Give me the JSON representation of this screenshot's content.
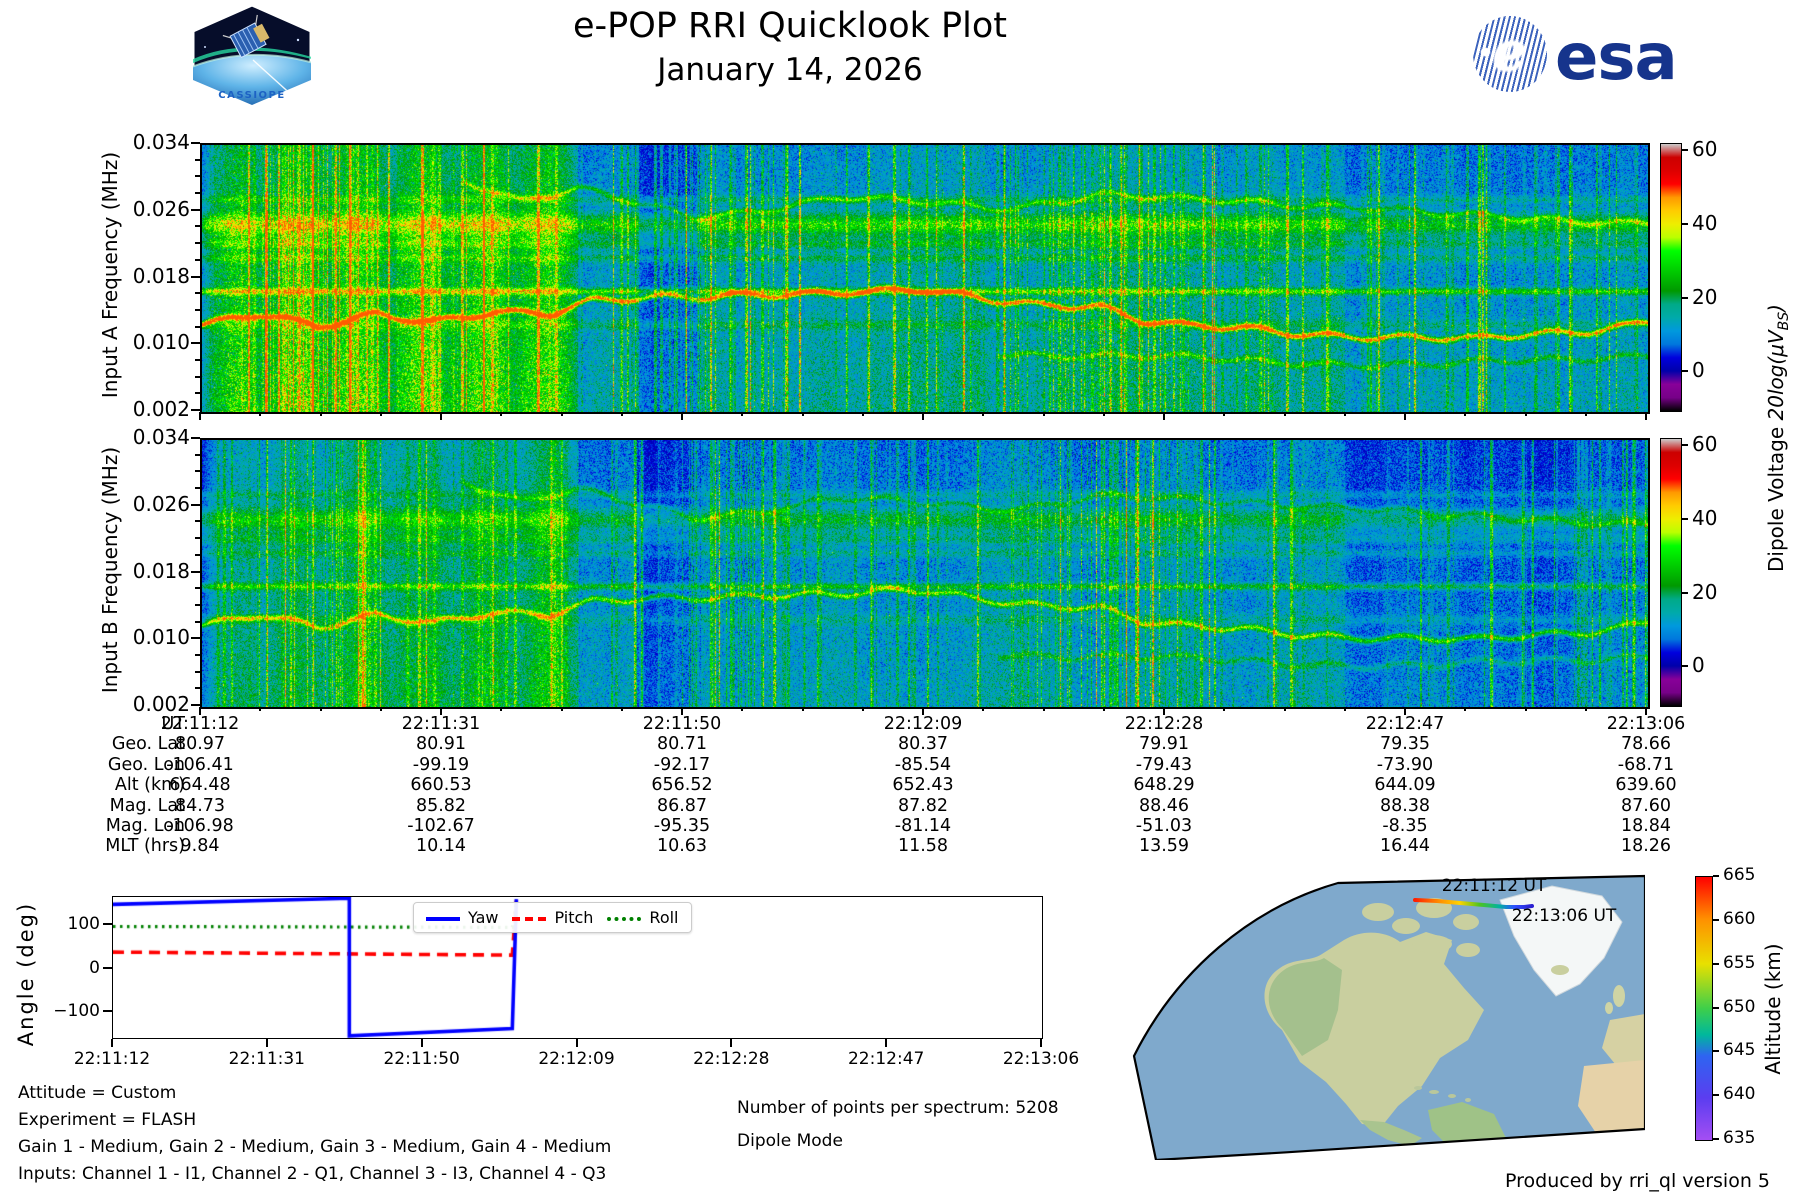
{
  "header": {
    "title": "e-POP RRI Quicklook Plot",
    "subtitle": "January 14, 2026",
    "cassiope_text": "CASSIOPE",
    "esa_text": "esa"
  },
  "colors": {
    "yaw": "#0000ff",
    "pitch": "#ff0000",
    "roll": "#008000",
    "esa_blue": "#16348c",
    "ocean": "#7fa9cc",
    "land_tan": "#c9cf9f",
    "land_green": "#9dbd8a",
    "africa": "#e6d2a8",
    "greenland": "#f4f7f7"
  },
  "spectrograms": {
    "x_ticks": [
      "22:11:12",
      "22:11:31",
      "22:11:50",
      "22:12:09",
      "22:12:28",
      "22:12:47",
      "22:13:06"
    ],
    "y_ticks": [
      "0.034",
      "0.026",
      "0.018",
      "0.010",
      "0.002"
    ],
    "panels": [
      {
        "ylabel": "Input A Frequency (MHz)"
      },
      {
        "ylabel": "Input B Frequency (MHz)"
      }
    ],
    "colorbar": {
      "ticks": [
        "60",
        "40",
        "20",
        "0"
      ],
      "label_plain": "Dipole Voltage ",
      "label_math": "20log(μV",
      "label_sub": "BS",
      "label_close": ")"
    }
  },
  "ephemeris": {
    "row_labels": [
      "UT",
      "Geo. Lat",
      "Geo. Lon",
      "Alt (km)",
      "Mag. Lat",
      "Mag. Lon",
      "MLT (hrs)"
    ],
    "columns": [
      [
        "22:11:12",
        "80.97",
        "-106.41",
        "664.48",
        "84.73",
        "-106.98",
        "9.84"
      ],
      [
        "22:11:31",
        "80.91",
        "-99.19",
        "660.53",
        "85.82",
        "-102.67",
        "10.14"
      ],
      [
        "22:11:50",
        "80.71",
        "-92.17",
        "656.52",
        "86.87",
        "-95.35",
        "10.63"
      ],
      [
        "22:12:09",
        "80.37",
        "-85.54",
        "652.43",
        "87.82",
        "-81.14",
        "11.58"
      ],
      [
        "22:12:28",
        "79.91",
        "-79.43",
        "648.29",
        "88.46",
        "-51.03",
        "13.59"
      ],
      [
        "22:12:47",
        "79.35",
        "-73.90",
        "644.09",
        "88.38",
        "-8.35",
        "16.44"
      ],
      [
        "22:13:06",
        "78.66",
        "-68.71",
        "639.60",
        "87.60",
        "18.84",
        "18.26"
      ]
    ]
  },
  "angle_plot": {
    "ylabel": "Angle (deg)",
    "y_ticks": [
      "100",
      "0",
      "−100"
    ],
    "x_ticks": [
      "22:11:12",
      "22:11:31",
      "22:11:50",
      "22:12:09",
      "22:12:28",
      "22:12:47",
      "22:13:06"
    ],
    "legend": [
      {
        "label": "Yaw",
        "color": "#0000ff",
        "style": "solid"
      },
      {
        "label": "Pitch",
        "color": "#ff0000",
        "style": "dashed"
      },
      {
        "label": "Roll",
        "color": "#008000",
        "style": "dotted"
      }
    ]
  },
  "map": {
    "track_start_label": "22:11:12 UT",
    "track_end_label": "22:13:06 UT",
    "colorbar": {
      "label": "Altitude (km)",
      "ticks": [
        "665",
        "660",
        "655",
        "650",
        "645",
        "640",
        "635"
      ]
    }
  },
  "footnotes": {
    "left": [
      "Attitude = Custom",
      "Experiment = FLASH",
      "Gain 1 - Medium, Gain 2 - Medium, Gain 3 - Medium, Gain 4 - Medium",
      "Inputs: Channel 1 - I1, Channel 2 - Q1, Channel 3 - I3, Channel 4 - Q3"
    ],
    "middle": [
      "Number of points per spectrum: 5208",
      "Dipole Mode"
    ],
    "credit": "Produced by rri_ql version 5"
  },
  "chart_data": [
    {
      "type": "heatmap",
      "name": "input-a-spectrogram",
      "title": "Input A",
      "ylabel": "Input A Frequency (MHz)",
      "ylim_mhz": [
        0.002,
        0.034
      ],
      "yticks_mhz": [
        0.034,
        0.026,
        0.018,
        0.01,
        0.002
      ],
      "x_range_ut": [
        "22:11:12",
        "22:13:06"
      ],
      "x_tick_labels": [
        "22:11:12",
        "22:11:31",
        "22:11:50",
        "22:12:09",
        "22:12:28",
        "22:12:47",
        "22:13:06"
      ],
      "colorbar": {
        "label": "Dipole Voltage 20log(μV_BS)",
        "ticks": [
          60,
          40,
          20,
          0
        ],
        "range": [
          -10.5,
          62
        ],
        "colormap": "nipy_spectral"
      },
      "render": {
        "seed": 11,
        "gain": 1.0,
        "left_boost": 0.15,
        "left_frac": 0.26,
        "dark_band_x": [
          0.3,
          0.345
        ],
        "right_dim_x": 0.79,
        "fshift": 0,
        "bands": [
          [
            0.0245,
            0.0013,
            0.28
          ],
          [
            0.0222,
            0.0007,
            0.14
          ],
          [
            0.0165,
            0.0004,
            0.3
          ],
          [
            0.0275,
            0.0005,
            0.11
          ],
          [
            0.0205,
            0.0005,
            0.12
          ],
          [
            0.0125,
            0.0006,
            0.09
          ]
        ],
        "traces": [
          {
            "a": 0.62,
            "pts": [
              [
                0,
                0.0125
              ],
              [
                0.04,
                0.0136
              ],
              [
                0.08,
                0.0121
              ],
              [
                0.12,
                0.0139
              ],
              [
                0.16,
                0.0131
              ],
              [
                0.2,
                0.0141
              ],
              [
                0.24,
                0.0136
              ],
              [
                0.27,
                0.0152
              ],
              [
                0.32,
                0.0159
              ],
              [
                0.38,
                0.0163
              ],
              [
                0.44,
                0.0161
              ],
              [
                0.5,
                0.0166
              ],
              [
                0.54,
                0.0158
              ],
              [
                0.58,
                0.0151
              ],
              [
                0.62,
                0.0147
              ],
              [
                0.65,
                0.0128
              ],
              [
                0.68,
                0.0122
              ],
              [
                0.72,
                0.0121
              ],
              [
                0.76,
                0.0116
              ],
              [
                0.8,
                0.0112
              ],
              [
                0.84,
                0.0109
              ],
              [
                0.88,
                0.0106
              ],
              [
                0.92,
                0.0113
              ],
              [
                0.96,
                0.0119
              ],
              [
                1,
                0.0131
              ]
            ]
          },
          {
            "a": 0.26,
            "pts": [
              [
                0.18,
                0.03
              ],
              [
                0.22,
                0.0272
              ],
              [
                0.26,
                0.0286
              ],
              [
                0.3,
                0.0271
              ],
              [
                0.34,
                0.0256
              ],
              [
                0.38,
                0.0262
              ],
              [
                0.44,
                0.0276
              ],
              [
                0.5,
                0.0271
              ],
              [
                0.56,
                0.0266
              ],
              [
                0.62,
                0.0281
              ],
              [
                0.68,
                0.0274
              ],
              [
                0.74,
                0.0271
              ],
              [
                0.8,
                0.0268
              ],
              [
                0.86,
                0.0256
              ],
              [
                0.92,
                0.0251
              ],
              [
                1,
                0.0249
              ]
            ]
          },
          {
            "a": 0.2,
            "pts": [
              [
                0.55,
                0.0092
              ],
              [
                0.65,
                0.0086
              ],
              [
                0.75,
                0.0081
              ],
              [
                0.85,
                0.0076
              ],
              [
                0.93,
                0.0083
              ],
              [
                1,
                0.009
              ]
            ]
          }
        ],
        "clusters": [
          0.08,
          0.36,
          0.6,
          0.66
        ]
      }
    },
    {
      "type": "heatmap",
      "name": "input-b-spectrogram",
      "title": "Input B",
      "ylabel": "Input B Frequency (MHz)",
      "ylim_mhz": [
        0.002,
        0.034
      ],
      "yticks_mhz": [
        0.034,
        0.026,
        0.018,
        0.01,
        0.002
      ],
      "x_range_ut": [
        "22:11:12",
        "22:13:06"
      ],
      "x_tick_labels": [
        "22:11:12",
        "22:11:31",
        "22:11:50",
        "22:12:09",
        "22:12:28",
        "22:12:47",
        "22:13:06"
      ],
      "colorbar": {
        "label": "Dipole Voltage 20log(μV_BS)",
        "ticks": [
          60,
          40,
          20,
          0
        ],
        "range": [
          -10.5,
          62
        ],
        "colormap": "nipy_spectral"
      },
      "render": {
        "seed": 77,
        "gain": 0.86,
        "left_boost": 0.12,
        "left_frac": 0.26,
        "dark_band_x": [
          0.3,
          0.345
        ],
        "right_dim_x": 0.79,
        "fshift": -0.0007,
        "bands": [
          [
            0.0245,
            0.0013,
            0.23
          ],
          [
            0.0222,
            0.0007,
            0.12
          ],
          [
            0.0165,
            0.0004,
            0.24
          ],
          [
            0.0275,
            0.0005,
            0.09
          ],
          [
            0.0205,
            0.0005,
            0.1
          ],
          [
            0.0125,
            0.0006,
            0.08
          ]
        ],
        "traces": [
          {
            "a": 0.42,
            "pts": [
              [
                0,
                0.0125
              ],
              [
                0.04,
                0.0136
              ],
              [
                0.08,
                0.0121
              ],
              [
                0.12,
                0.0139
              ],
              [
                0.16,
                0.0131
              ],
              [
                0.2,
                0.0141
              ],
              [
                0.24,
                0.0136
              ],
              [
                0.27,
                0.0152
              ],
              [
                0.32,
                0.0159
              ],
              [
                0.38,
                0.0163
              ],
              [
                0.44,
                0.0161
              ],
              [
                0.5,
                0.0166
              ],
              [
                0.54,
                0.0158
              ],
              [
                0.58,
                0.0151
              ],
              [
                0.62,
                0.0147
              ],
              [
                0.65,
                0.0128
              ],
              [
                0.68,
                0.0122
              ],
              [
                0.72,
                0.0121
              ],
              [
                0.76,
                0.0116
              ],
              [
                0.8,
                0.0112
              ],
              [
                0.84,
                0.0109
              ],
              [
                0.88,
                0.0106
              ],
              [
                0.92,
                0.0113
              ],
              [
                0.96,
                0.0119
              ],
              [
                1,
                0.0131
              ]
            ]
          },
          {
            "a": 0.2,
            "pts": [
              [
                0.18,
                0.03
              ],
              [
                0.22,
                0.0272
              ],
              [
                0.26,
                0.0286
              ],
              [
                0.3,
                0.0271
              ],
              [
                0.34,
                0.0256
              ],
              [
                0.38,
                0.0262
              ],
              [
                0.44,
                0.0276
              ],
              [
                0.5,
                0.0271
              ],
              [
                0.56,
                0.0266
              ],
              [
                0.62,
                0.0281
              ],
              [
                0.68,
                0.0274
              ],
              [
                0.74,
                0.0271
              ],
              [
                0.8,
                0.0268
              ],
              [
                0.86,
                0.0256
              ],
              [
                0.92,
                0.0251
              ],
              [
                1,
                0.0249
              ]
            ]
          },
          {
            "a": 0.16,
            "pts": [
              [
                0.55,
                0.0092
              ],
              [
                0.65,
                0.0086
              ],
              [
                0.75,
                0.0081
              ],
              [
                0.85,
                0.0076
              ],
              [
                0.93,
                0.0083
              ],
              [
                1,
                0.009
              ]
            ]
          }
        ],
        "clusters": [
          0.08,
          0.36,
          0.6,
          0.66
        ]
      }
    },
    {
      "type": "line",
      "name": "attitude-angles",
      "ylabel": "Angle (deg)",
      "ylim": [
        -160,
        165
      ],
      "yticks": [
        100,
        0,
        -100
      ],
      "xlim_seconds": [
        0,
        114
      ],
      "x_tick_seconds": [
        0,
        19,
        38,
        57,
        76,
        95,
        114
      ],
      "x_tick_labels": [
        "22:11:12",
        "22:11:31",
        "22:11:50",
        "22:12:09",
        "22:12:28",
        "22:12:47",
        "22:13:06"
      ],
      "series": [
        {
          "name": "Yaw",
          "color": "#0000ff",
          "style": "solid",
          "points": [
            [
              0,
              148
            ],
            [
              29,
              162
            ],
            [
              29,
              -155
            ],
            [
              49,
              -138
            ],
            [
              49.5,
              160
            ]
          ]
        },
        {
          "name": "Pitch",
          "color": "#ff0000",
          "style": "dashed",
          "points": [
            [
              0,
              38
            ],
            [
              49,
              31
            ],
            [
              49.5,
              157
            ]
          ]
        },
        {
          "name": "Roll",
          "color": "#008000",
          "style": "dotted",
          "points": [
            [
              0,
              97
            ],
            [
              49,
              95
            ],
            [
              49.5,
              150
            ]
          ]
        }
      ]
    },
    {
      "type": "table",
      "name": "ephemeris",
      "row_labels": [
        "UT",
        "Geo. Lat",
        "Geo. Lon",
        "Alt (km)",
        "Mag. Lat",
        "Mag. Lon",
        "MLT (hrs)"
      ],
      "columns": [
        [
          "22:11:12",
          "80.97",
          "-106.41",
          "664.48",
          "84.73",
          "-106.98",
          "9.84"
        ],
        [
          "22:11:31",
          "80.91",
          "-99.19",
          "660.53",
          "85.82",
          "-102.67",
          "10.14"
        ],
        [
          "22:11:50",
          "80.71",
          "-92.17",
          "656.52",
          "86.87",
          "-95.35",
          "10.63"
        ],
        [
          "22:12:09",
          "80.37",
          "-85.54",
          "652.43",
          "87.82",
          "-81.14",
          "11.58"
        ],
        [
          "22:12:28",
          "79.91",
          "-79.43",
          "648.29",
          "88.46",
          "-51.03",
          "13.59"
        ],
        [
          "22:12:47",
          "79.35",
          "-73.90",
          "644.09",
          "88.38",
          "-8.35",
          "16.44"
        ],
        [
          "22:13:06",
          "78.66",
          "-68.71",
          "639.60",
          "87.60",
          "18.84",
          "18.26"
        ]
      ]
    },
    {
      "type": "map-track",
      "name": "ground-track",
      "region": "North America / North Atlantic, polar pass",
      "track": {
        "start_ut": "22:11:12",
        "end_ut": "22:13:06",
        "start_alt_km": 664.48,
        "end_alt_km": 639.6,
        "color_encodes": "Altitude (km)"
      },
      "colorbar": {
        "label": "Altitude (km)",
        "ticks": [
          665,
          660,
          655,
          650,
          645,
          640,
          635
        ],
        "range": [
          635,
          665
        ],
        "colormap": "rainbow"
      }
    }
  ]
}
